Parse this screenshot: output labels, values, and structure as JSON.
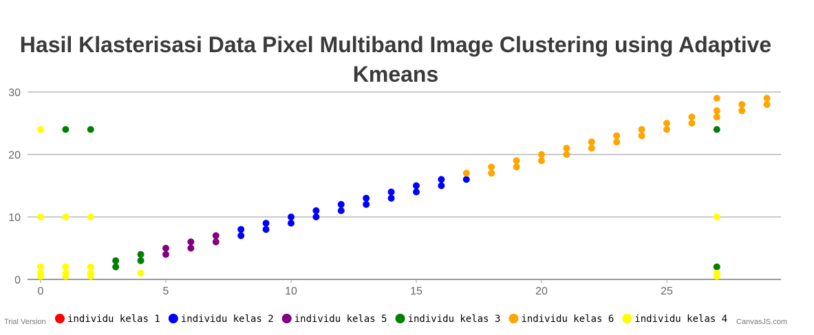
{
  "watermark": {
    "left": "Trial Version",
    "right": "CanvasJS.com"
  },
  "chart_data": {
    "type": "scatter",
    "title": "Hasil Klasterisasi Data Pixel Multiband Image Clustering using Adaptive Kmeans",
    "title_lines": [
      "Hasil Klasterisasi Data Pixel Multiband Image Clustering using Adaptive",
      "Kmeans"
    ],
    "xlabel": "",
    "ylabel": "",
    "xlim": [
      -1,
      29
    ],
    "ylim": [
      0,
      30
    ],
    "x_ticks": [
      0,
      5,
      10,
      15,
      20,
      25
    ],
    "y_ticks": [
      0,
      10,
      20,
      30
    ],
    "grid": "horizontal",
    "legend_position": "bottom",
    "series": [
      {
        "name": "individu kelas 1",
        "color": "#ff0000",
        "points": []
      },
      {
        "name": "individu kelas 2",
        "color": "#0000ff",
        "points": [
          [
            8,
            7
          ],
          [
            8,
            8
          ],
          [
            9,
            8
          ],
          [
            9,
            9
          ],
          [
            10,
            9
          ],
          [
            10,
            10
          ],
          [
            11,
            10
          ],
          [
            11,
            11
          ],
          [
            12,
            11
          ],
          [
            12,
            12
          ],
          [
            13,
            12
          ],
          [
            13,
            13
          ],
          [
            14,
            13
          ],
          [
            14,
            14
          ],
          [
            15,
            14
          ],
          [
            15,
            15
          ],
          [
            16,
            15
          ],
          [
            16,
            16
          ],
          [
            17,
            16
          ]
        ]
      },
      {
        "name": "individu kelas 5",
        "color": "#800080",
        "points": [
          [
            5,
            4
          ],
          [
            5,
            5
          ],
          [
            6,
            5
          ],
          [
            6,
            6
          ],
          [
            7,
            6
          ],
          [
            7,
            7
          ]
        ]
      },
      {
        "name": "individu kelas 3",
        "color": "#008000",
        "points": [
          [
            1,
            24
          ],
          [
            2,
            24
          ],
          [
            3,
            2
          ],
          [
            3,
            3
          ],
          [
            4,
            3
          ],
          [
            4,
            4
          ],
          [
            27,
            24
          ],
          [
            27,
            2
          ]
        ]
      },
      {
        "name": "individu kelas 6",
        "color": "#ffa500",
        "points": [
          [
            17,
            17
          ],
          [
            18,
            17
          ],
          [
            18,
            18
          ],
          [
            19,
            18
          ],
          [
            19,
            19
          ],
          [
            20,
            19
          ],
          [
            20,
            20
          ],
          [
            21,
            20
          ],
          [
            21,
            21
          ],
          [
            22,
            21
          ],
          [
            22,
            22
          ],
          [
            23,
            22
          ],
          [
            23,
            23
          ],
          [
            24,
            23
          ],
          [
            24,
            24
          ],
          [
            25,
            24
          ],
          [
            25,
            25
          ],
          [
            26,
            25
          ],
          [
            26,
            26
          ],
          [
            27,
            26
          ],
          [
            27,
            27
          ],
          [
            27,
            29
          ],
          [
            28,
            27
          ],
          [
            28,
            28
          ],
          [
            29,
            28
          ],
          [
            29,
            29
          ]
        ]
      },
      {
        "name": "individu kelas 4",
        "color": "#ffff00",
        "points": [
          [
            0,
            24
          ],
          [
            0,
            10
          ],
          [
            1,
            10
          ],
          [
            2,
            10
          ],
          [
            0,
            2
          ],
          [
            0,
            1
          ],
          [
            0,
            0.5
          ],
          [
            1,
            2
          ],
          [
            1,
            1
          ],
          [
            1,
            0.5
          ],
          [
            2,
            2
          ],
          [
            2,
            1
          ],
          [
            2,
            0.5
          ],
          [
            4,
            1
          ],
          [
            27,
            10
          ],
          [
            27,
            1
          ],
          [
            27,
            0.5
          ]
        ]
      }
    ]
  }
}
